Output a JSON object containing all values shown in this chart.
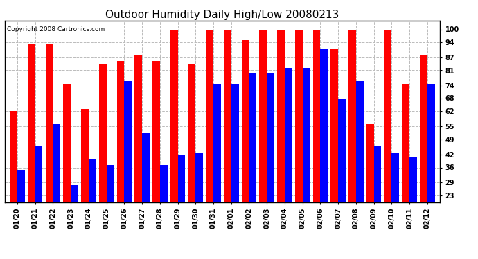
{
  "title": "Outdoor Humidity Daily High/Low 20080213",
  "copyright": "Copyright 2008 Cartronics.com",
  "dates": [
    "01/20",
    "01/21",
    "01/22",
    "01/23",
    "01/24",
    "01/25",
    "01/26",
    "01/27",
    "01/28",
    "01/29",
    "01/30",
    "01/31",
    "02/01",
    "02/02",
    "02/03",
    "02/04",
    "02/05",
    "02/06",
    "02/07",
    "02/08",
    "02/09",
    "02/10",
    "02/11",
    "02/12"
  ],
  "highs": [
    62,
    93,
    93,
    75,
    63,
    84,
    85,
    88,
    85,
    100,
    84,
    100,
    100,
    95,
    100,
    100,
    100,
    100,
    91,
    100,
    56,
    100,
    75,
    88
  ],
  "lows": [
    35,
    46,
    56,
    28,
    40,
    37,
    76,
    52,
    37,
    42,
    43,
    75,
    75,
    80,
    80,
    82,
    82,
    91,
    68,
    76,
    46,
    43,
    41,
    75
  ],
  "high_color": "#ff0000",
  "low_color": "#0000ff",
  "bg_color": "#ffffff",
  "yticks": [
    23,
    29,
    36,
    42,
    49,
    55,
    62,
    68,
    74,
    81,
    87,
    94,
    100
  ],
  "ymin": 20,
  "ymax": 104,
  "bar_width": 0.42,
  "title_fontsize": 11,
  "tick_fontsize": 7,
  "copyright_fontsize": 6.5
}
